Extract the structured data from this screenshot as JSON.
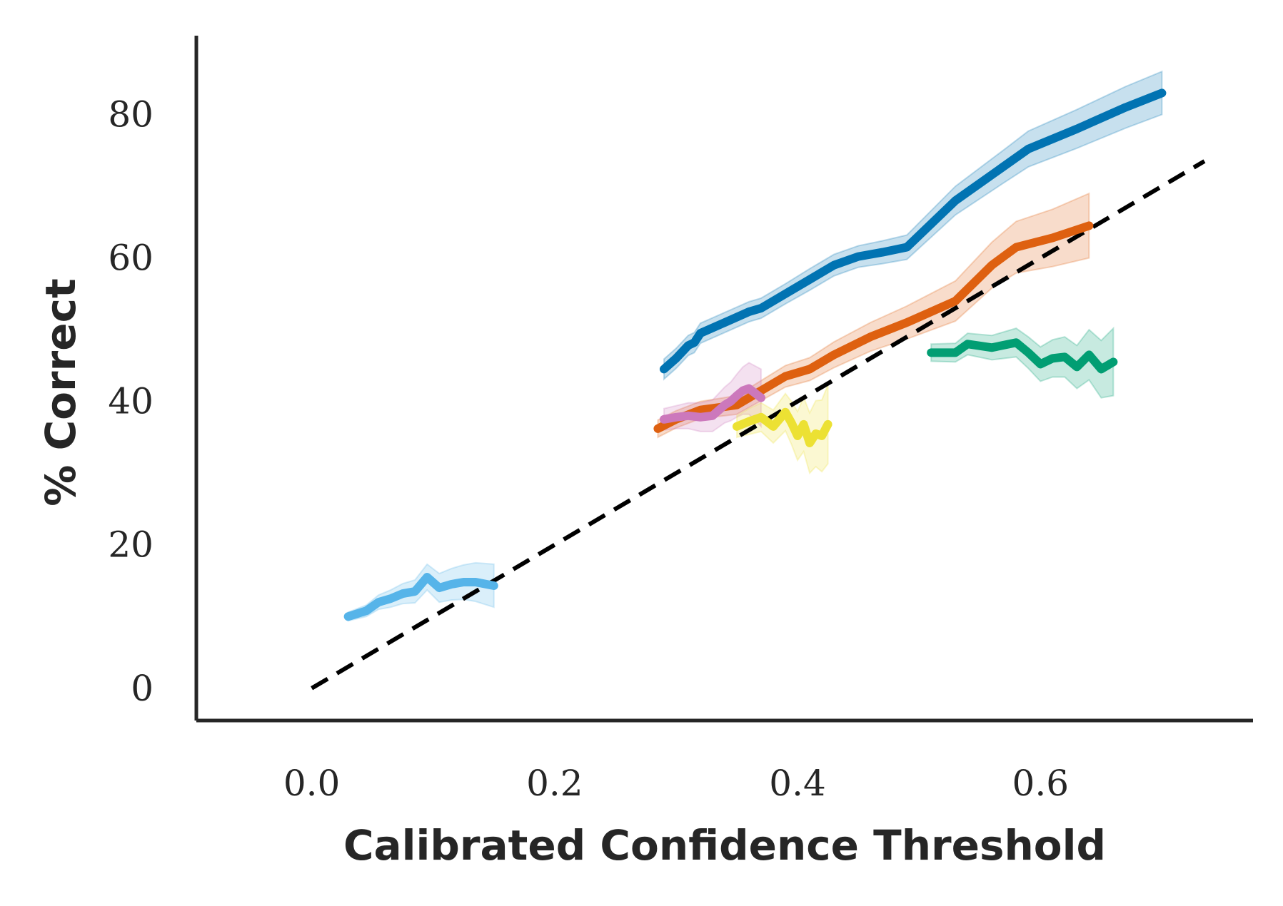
{
  "chart_data": {
    "type": "line",
    "title": "",
    "xlabel": "Calibrated Confidence Threshold",
    "ylabel": "% Correct",
    "xlim": [
      -0.095,
      0.775
    ],
    "ylim": [
      -4.5,
      91
    ],
    "xticks": [
      0.0,
      0.2,
      0.4,
      0.6
    ],
    "xtick_labels": [
      "0.0",
      "0.2",
      "0.4",
      "0.6"
    ],
    "yticks": [
      0,
      20,
      40,
      60,
      80
    ],
    "ytick_labels": [
      "0",
      "20",
      "40",
      "60",
      "80"
    ],
    "grid": false,
    "legend": "none",
    "reference_line": {
      "name": "perfect-calibration",
      "x": [
        0.0,
        0.735
      ],
      "y": [
        0.0,
        73.5
      ],
      "color": "#000000",
      "style": "dashed"
    },
    "series": [
      {
        "name": "series-dark-blue",
        "color": "#0173b2",
        "x": [
          0.29,
          0.3,
          0.31,
          0.315,
          0.32,
          0.34,
          0.36,
          0.37,
          0.39,
          0.41,
          0.43,
          0.45,
          0.47,
          0.49,
          0.53,
          0.57,
          0.59,
          0.63,
          0.67,
          0.7
        ],
        "y": [
          44.5,
          46,
          47.8,
          48.2,
          49.5,
          51,
          52.5,
          53,
          55,
          57,
          59,
          60.2,
          60.8,
          61.5,
          68,
          72.8,
          75.2,
          78,
          81,
          83
        ],
        "band": [
          1.4,
          1.4,
          1.4,
          1.4,
          1.4,
          1.4,
          1.4,
          1.4,
          1.4,
          1.5,
          1.5,
          1.5,
          1.6,
          1.7,
          2.0,
          2.3,
          2.5,
          2.7,
          2.9,
          3.0
        ]
      },
      {
        "name": "series-orange",
        "color": "#de6010",
        "x": [
          0.285,
          0.3,
          0.32,
          0.35,
          0.37,
          0.39,
          0.41,
          0.43,
          0.46,
          0.49,
          0.53,
          0.56,
          0.58,
          0.61,
          0.64
        ],
        "y": [
          36.2,
          37.5,
          38.8,
          39.5,
          41.5,
          43.5,
          44.5,
          46.5,
          49,
          51,
          54,
          59,
          61.5,
          62.8,
          64.5
        ],
        "band": [
          1.2,
          1.2,
          1.2,
          1.3,
          1.4,
          1.5,
          1.6,
          1.8,
          2.0,
          2.3,
          2.8,
          3.2,
          3.6,
          4.0,
          4.5
        ]
      },
      {
        "name": "series-green",
        "color": "#029e73",
        "x": [
          0.51,
          0.53,
          0.54,
          0.56,
          0.58,
          0.59,
          0.6,
          0.61,
          0.62,
          0.63,
          0.64,
          0.65,
          0.66
        ],
        "y": [
          46.8,
          46.8,
          48,
          47.5,
          48.2,
          46.8,
          45.2,
          46,
          46.2,
          44.8,
          46.5,
          44.5,
          45.5
        ],
        "band": [
          1.2,
          1.3,
          1.5,
          1.7,
          2.0,
          2.2,
          2.4,
          2.6,
          2.8,
          3.0,
          3.5,
          4.0,
          4.7
        ]
      },
      {
        "name": "series-pink",
        "color": "#cc78bc",
        "x": [
          0.29,
          0.3,
          0.31,
          0.32,
          0.33,
          0.34,
          0.345,
          0.35,
          0.355,
          0.36,
          0.37
        ],
        "y": [
          37.5,
          37.8,
          38,
          37.8,
          38,
          39.5,
          40,
          40.8,
          41.5,
          41.8,
          40.5
        ],
        "band": [
          1.5,
          1.6,
          1.8,
          2.0,
          2.2,
          2.5,
          2.7,
          3.0,
          3.3,
          3.6,
          4.0
        ]
      },
      {
        "name": "series-yellow",
        "color": "#ece133",
        "x": [
          0.35,
          0.36,
          0.37,
          0.38,
          0.39,
          0.395,
          0.4,
          0.405,
          0.41,
          0.415,
          0.42,
          0.425
        ],
        "y": [
          36.5,
          37.2,
          37.8,
          36.5,
          38.5,
          37,
          35.2,
          36.8,
          34.2,
          35.5,
          35.2,
          36.8
        ],
        "band": [
          1.5,
          1.8,
          2.0,
          2.3,
          2.6,
          3.0,
          3.4,
          3.8,
          4.2,
          4.6,
          5.0,
          5.5
        ]
      },
      {
        "name": "series-light-blue",
        "color": "#56b4e9",
        "x": [
          0.03,
          0.045,
          0.055,
          0.065,
          0.075,
          0.085,
          0.095,
          0.105,
          0.115,
          0.125,
          0.135,
          0.15
        ],
        "y": [
          10,
          10.8,
          12,
          12.5,
          13.2,
          13.5,
          15.5,
          14,
          14.5,
          14.8,
          14.8,
          14.3
        ],
        "band": [
          0.6,
          0.8,
          1.0,
          1.2,
          1.4,
          1.6,
          1.8,
          2.0,
          2.2,
          2.4,
          2.7,
          3.0
        ]
      }
    ]
  }
}
